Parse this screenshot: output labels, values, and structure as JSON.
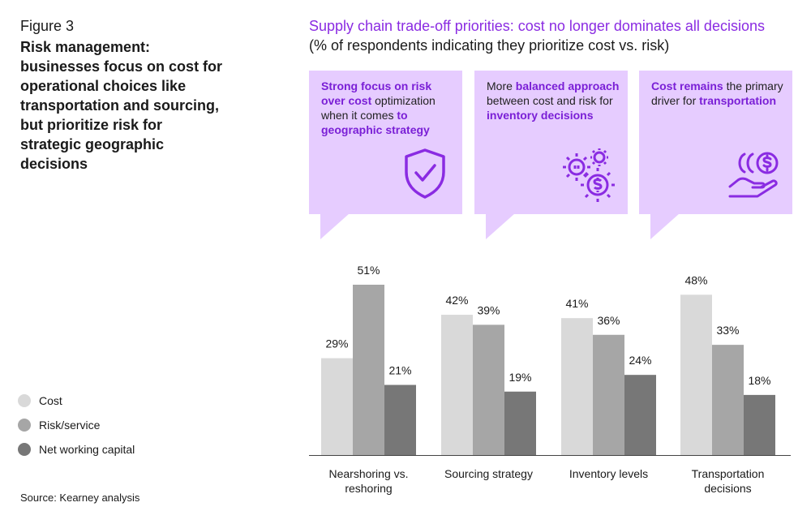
{
  "figure_label": "Figure 3",
  "figure_title": "Risk management: businesses focus on cost for operational choices like transportation and sourcing, but prioritize risk for strategic geographic decisions",
  "source": "Source: Kearney analysis",
  "callouts": [
    {
      "parts": [
        {
          "text": "Strong focus on risk over cost",
          "hl": true
        },
        {
          "text": " optimization when it comes ",
          "hl": false
        },
        {
          "text": "to geographic strategy",
          "hl": true
        }
      ],
      "icon": "shield-check-icon"
    },
    {
      "parts": [
        {
          "text": "More ",
          "hl": false
        },
        {
          "text": "balanced approach",
          "hl": true
        },
        {
          "text": " between cost and risk for ",
          "hl": false
        },
        {
          "text": "inventory decisions",
          "hl": true
        }
      ],
      "icon": "gears-dollar-icon"
    },
    {
      "parts": [
        {
          "text": "Cost remains",
          "hl": true
        },
        {
          "text": " the primary driver for ",
          "hl": false
        },
        {
          "text": "transportation",
          "hl": true
        }
      ],
      "icon": "hand-coins-icon"
    }
  ],
  "colors": {
    "accent": "#8a2be2",
    "highlight_text": "#7a1fd6",
    "callout_bg": "#e6ccff",
    "cost": "#d9d9d9",
    "risk": "#a6a6a6",
    "nwc": "#777777"
  },
  "chart_data": {
    "type": "bar",
    "title": "Supply chain trade-off priorities: cost no longer dominates all decisions",
    "subtitle": "(% of respondents indicating they prioritize cost vs. risk)",
    "categories": [
      [
        "Nearshoring vs.",
        "reshoring"
      ],
      [
        "Sourcing strategy"
      ],
      [
        "Inventory levels"
      ],
      [
        "Transportation",
        "decisions"
      ]
    ],
    "series": [
      {
        "name": "Cost",
        "values": [
          29,
          42,
          41,
          48
        ],
        "color": "#d9d9d9"
      },
      {
        "name": "Risk/service",
        "values": [
          51,
          39,
          36,
          33
        ],
        "color": "#a6a6a6"
      },
      {
        "name": "Net working capital",
        "values": [
          21,
          19,
          24,
          18
        ],
        "color": "#777777"
      }
    ],
    "value_suffix": "%",
    "ylim": [
      0,
      51
    ],
    "grid": false,
    "legend_placement": "left"
  }
}
